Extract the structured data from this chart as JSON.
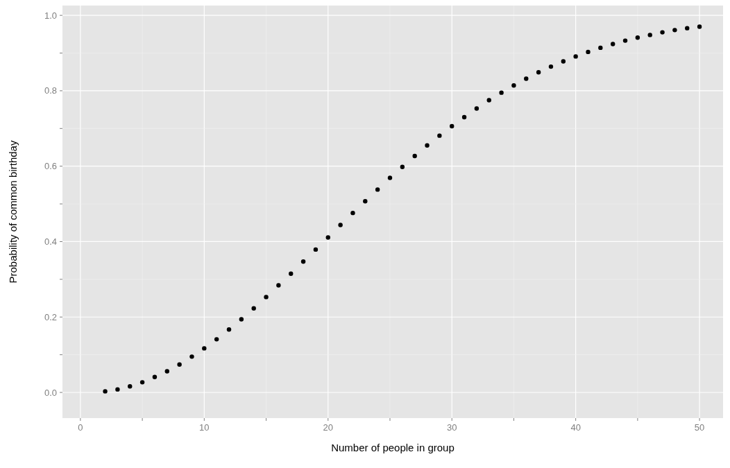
{
  "chart_data": {
    "type": "scatter",
    "xlabel": "Number of people in group",
    "ylabel": "Probability of common birthday",
    "x": [
      2,
      3,
      4,
      5,
      6,
      7,
      8,
      9,
      10,
      11,
      12,
      13,
      14,
      15,
      16,
      17,
      18,
      19,
      20,
      21,
      22,
      23,
      24,
      25,
      26,
      27,
      28,
      29,
      30,
      31,
      32,
      33,
      34,
      35,
      36,
      37,
      38,
      39,
      40,
      41,
      42,
      43,
      44,
      45,
      46,
      47,
      48,
      49,
      50
    ],
    "values": [
      0.003,
      0.008,
      0.016,
      0.027,
      0.041,
      0.056,
      0.074,
      0.095,
      0.117,
      0.141,
      0.167,
      0.194,
      0.223,
      0.253,
      0.284,
      0.315,
      0.347,
      0.379,
      0.411,
      0.444,
      0.476,
      0.507,
      0.538,
      0.569,
      0.598,
      0.627,
      0.655,
      0.681,
      0.706,
      0.73,
      0.753,
      0.775,
      0.795,
      0.814,
      0.832,
      0.849,
      0.864,
      0.878,
      0.891,
      0.903,
      0.914,
      0.924,
      0.933,
      0.941,
      0.948,
      0.955,
      0.961,
      0.966,
      0.97
    ],
    "color": "#000000",
    "marker": "circle",
    "grid": true,
    "xlim": [
      -1.45,
      51.9
    ],
    "ylim": [
      -0.068,
      1.026
    ],
    "xticks": [
      0,
      {
        "value": 5,
        "label": null
      },
      10,
      {
        "value": 15,
        "label": null
      },
      20,
      {
        "value": 25,
        "label": null
      },
      30,
      {
        "value": 35,
        "label": null
      },
      40,
      {
        "value": 45,
        "label": null
      },
      50
    ],
    "yticks": [
      {
        "value": 0,
        "label": "0.0"
      },
      {
        "value": 0.1,
        "label": null
      },
      {
        "value": 0.2,
        "label": "0.2"
      },
      {
        "value": 0.3,
        "label": null
      },
      {
        "value": 0.4,
        "label": "0.4"
      },
      {
        "value": 0.5,
        "label": null
      },
      {
        "value": 0.6,
        "label": "0.6"
      },
      {
        "value": 0.7,
        "label": null
      },
      {
        "value": 0.8,
        "label": "0.8"
      },
      {
        "value": 0.9,
        "label": null
      },
      {
        "value": 1,
        "label": "1.0"
      }
    ]
  }
}
